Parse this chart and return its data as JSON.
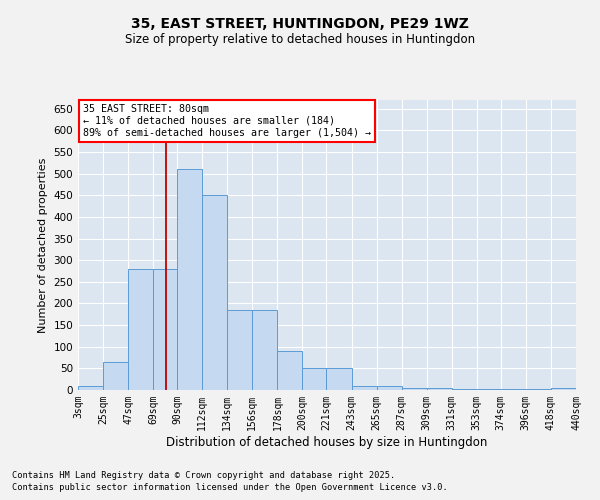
{
  "title1": "35, EAST STREET, HUNTINGDON, PE29 1WZ",
  "title2": "Size of property relative to detached houses in Huntingdon",
  "xlabel": "Distribution of detached houses by size in Huntingdon",
  "ylabel": "Number of detached properties",
  "annotation_title": "35 EAST STREET: 80sqm",
  "annotation_line1": "← 11% of detached houses are smaller (184)",
  "annotation_line2": "89% of semi-detached houses are larger (1,504) →",
  "footnote1": "Contains HM Land Registry data © Crown copyright and database right 2025.",
  "footnote2": "Contains public sector information licensed under the Open Government Licence v3.0.",
  "bar_color": "#c5d9f0",
  "bar_edge_color": "#5b9bd5",
  "background_color": "#dce6f1",
  "grid_color": "#ffffff",
  "fig_background": "#f2f2f2",
  "vline_color": "#c00000",
  "vline_x": 80,
  "bin_edges": [
    3,
    25,
    47,
    69,
    90,
    112,
    134,
    156,
    178,
    200,
    221,
    243,
    265,
    287,
    309,
    331,
    353,
    374,
    396,
    418,
    440
  ],
  "bar_heights": [
    10,
    65,
    280,
    280,
    510,
    450,
    185,
    185,
    90,
    50,
    50,
    10,
    10,
    5,
    5,
    2,
    2,
    2,
    2,
    5
  ],
  "ylim": [
    0,
    670
  ],
  "yticks": [
    0,
    50,
    100,
    150,
    200,
    250,
    300,
    350,
    400,
    450,
    500,
    550,
    600,
    650
  ],
  "tick_labels": [
    "3sqm",
    "25sqm",
    "47sqm",
    "69sqm",
    "90sqm",
    "112sqm",
    "134sqm",
    "156sqm",
    "178sqm",
    "200sqm",
    "221sqm",
    "243sqm",
    "265sqm",
    "287sqm",
    "309sqm",
    "331sqm",
    "353sqm",
    "374sqm",
    "396sqm",
    "418sqm",
    "440sqm"
  ]
}
